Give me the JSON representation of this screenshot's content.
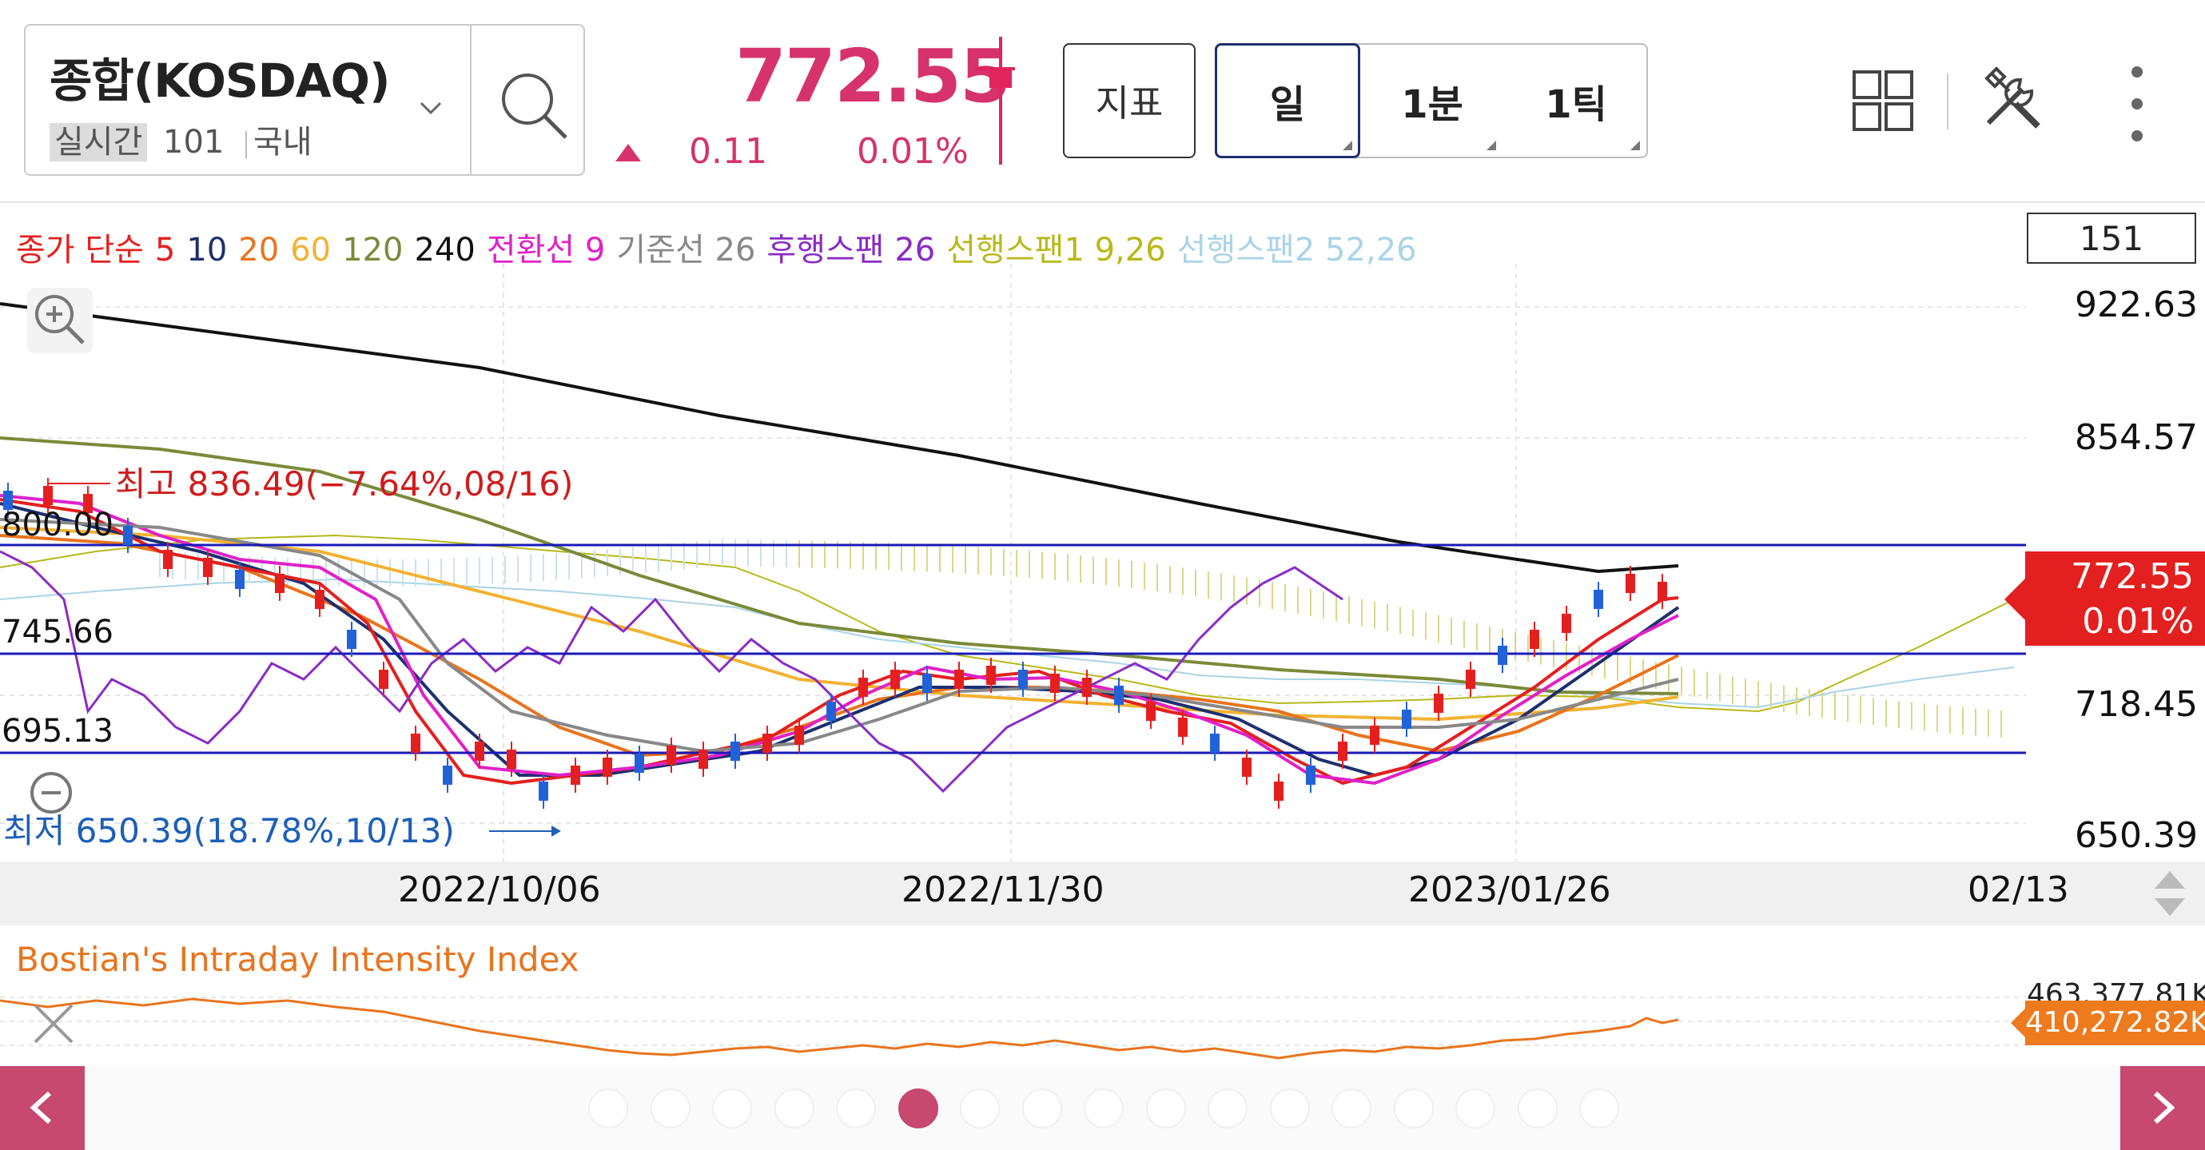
{
  "header": {
    "symbol_name": "종합(KOSDAQ)",
    "realtime_label": "실시간",
    "code": "101",
    "market": "국내",
    "price": "772.55",
    "change": "0.11",
    "change_rate": "0.01%",
    "indicator_button": "지표",
    "periods": [
      {
        "label": "일",
        "active": true
      },
      {
        "label": "1분",
        "active": false
      },
      {
        "label": "1틱",
        "active": false
      }
    ],
    "icons": [
      "chevron-down-icon",
      "search-icon",
      "grid-layout-icon",
      "tools-icon",
      "more-vertical-icon"
    ]
  },
  "legend": {
    "items": [
      {
        "text": "종가 단순",
        "color": "#e3201f"
      },
      {
        "text": "5",
        "color": "#e3201f"
      },
      {
        "text": "10",
        "color": "#1d2f6f"
      },
      {
        "text": "20",
        "color": "#e8741e"
      },
      {
        "text": "60",
        "color": "#f2b233"
      },
      {
        "text": "120",
        "color": "#7a8a3a"
      },
      {
        "text": "240",
        "color": "#111111"
      },
      {
        "text": "전환선 9",
        "color": "#e021c8"
      },
      {
        "text": "기준선 26",
        "color": "#888888"
      },
      {
        "text": "후행스팬 26",
        "color": "#8a2bc4"
      },
      {
        "text": "선행스팬1 9,26",
        "color": "#b8b81a"
      },
      {
        "text": "선행스팬2 52,26",
        "color": "#a8d4e6"
      }
    ],
    "count": "151"
  },
  "chart_data": {
    "type": "candlestick",
    "y_axis_labels": [
      "922.63",
      "854.57",
      "772.55",
      "718.45",
      "650.39"
    ],
    "left_labels": [
      "800.00",
      "745.66",
      "695.13"
    ],
    "x_axis_labels": [
      "2022/10/06",
      "2022/11/30",
      "2023/01/26",
      "02/13"
    ],
    "high_annotation": "최고 836.49(−7.64%,08/16)",
    "low_annotation": "최저 650.39(18.78%,10/13)",
    "current_tag": {
      "price": "772.55",
      "rate": "0.01%"
    },
    "horizontal_lines": [
      800.0,
      745.66,
      695.13
    ],
    "colors": {
      "up": "#e3201f",
      "down": "#2262d8",
      "tag": "#e3201f"
    }
  },
  "subchart": {
    "title": "Bostian's Intraday Intensity Index",
    "top_value": "463,377.81K",
    "current_value": "410,272.82K"
  },
  "pager": {
    "total": 17,
    "active_index": 5
  }
}
